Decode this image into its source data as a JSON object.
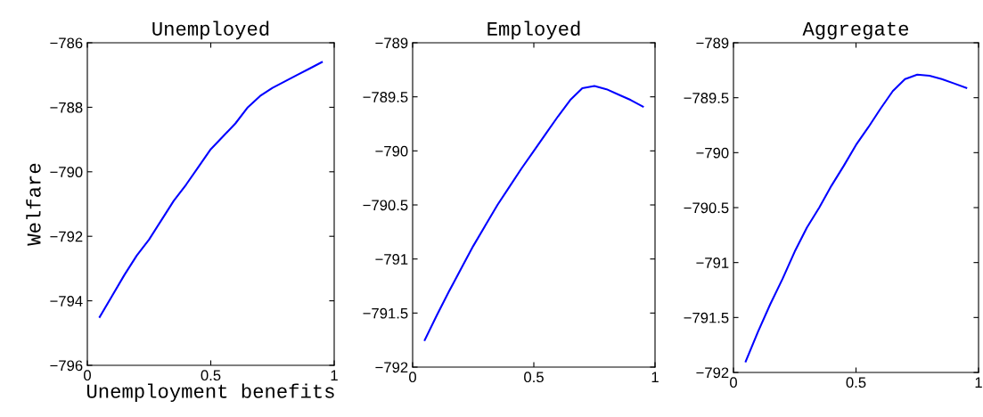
{
  "chart_data": [
    {
      "type": "line",
      "title": "Unemployed",
      "xlabel": "Unemployment benefits",
      "ylabel": "Welfare",
      "x": [
        0.05,
        0.1,
        0.15,
        0.2,
        0.25,
        0.3,
        0.35,
        0.4,
        0.45,
        0.5,
        0.55,
        0.6,
        0.65,
        0.7,
        0.75,
        0.8,
        0.85,
        0.9,
        0.95
      ],
      "xlim": [
        0,
        1
      ],
      "xticks": [
        0,
        0.5,
        1
      ],
      "ylim": [
        -796,
        -786
      ],
      "yticks": [
        -796,
        -794,
        -792,
        -790,
        -788,
        -786
      ],
      "grid": false,
      "legend": false,
      "series": [
        {
          "color": "#0000ff",
          "values": [
            -794.5,
            -793.85,
            -793.2,
            -792.6,
            -792.1,
            -791.5,
            -790.9,
            -790.4,
            -789.85,
            -789.3,
            -788.9,
            -788.5,
            -788.0,
            -787.65,
            -787.4,
            -787.2,
            -787.0,
            -786.8,
            -786.6
          ]
        }
      ]
    },
    {
      "type": "line",
      "title": "Employed",
      "x": [
        0.05,
        0.1,
        0.15,
        0.2,
        0.25,
        0.3,
        0.35,
        0.4,
        0.45,
        0.5,
        0.55,
        0.6,
        0.65,
        0.7,
        0.75,
        0.8,
        0.85,
        0.9,
        0.95
      ],
      "xlim": [
        0,
        1
      ],
      "xticks": [
        0,
        0.5,
        1
      ],
      "ylim": [
        -792,
        -789
      ],
      "yticks": [
        -792,
        -791.5,
        -791,
        -790.5,
        -790,
        -789.5,
        -789
      ],
      "grid": false,
      "legend": false,
      "series": [
        {
          "color": "#0000ff",
          "values": [
            -791.75,
            -791.52,
            -791.3,
            -791.09,
            -790.88,
            -790.69,
            -790.5,
            -790.33,
            -790.16,
            -790.0,
            -789.84,
            -789.68,
            -789.53,
            -789.42,
            -789.4,
            -789.43,
            -789.48,
            -789.53,
            -789.59
          ]
        }
      ]
    },
    {
      "type": "line",
      "title": "Aggregate",
      "x": [
        0.05,
        0.1,
        0.15,
        0.2,
        0.25,
        0.3,
        0.35,
        0.4,
        0.45,
        0.5,
        0.55,
        0.6,
        0.65,
        0.7,
        0.75,
        0.8,
        0.85,
        0.9,
        0.95
      ],
      "xlim": [
        0,
        1
      ],
      "xticks": [
        0,
        0.5,
        1
      ],
      "ylim": [
        -792,
        -789
      ],
      "yticks": [
        -792,
        -791.5,
        -791,
        -790.5,
        -790,
        -789.5,
        -789
      ],
      "grid": false,
      "legend": false,
      "series": [
        {
          "color": "#0000ff",
          "values": [
            -791.9,
            -791.63,
            -791.38,
            -791.15,
            -790.9,
            -790.68,
            -790.5,
            -790.3,
            -790.12,
            -789.93,
            -789.77,
            -789.6,
            -789.44,
            -789.33,
            -789.29,
            -789.3,
            -789.33,
            -789.37,
            -789.41
          ]
        }
      ]
    }
  ]
}
